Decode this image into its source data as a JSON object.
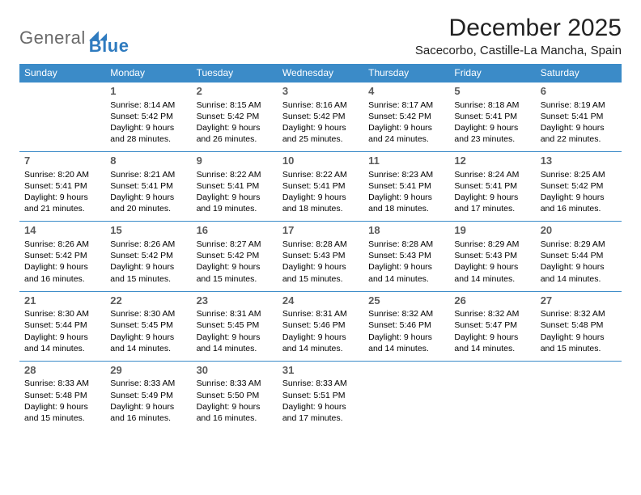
{
  "logo": {
    "general": "General",
    "blue": "Blue"
  },
  "title": "December 2025",
  "location": "Sacecorbo, Castille-La Mancha, Spain",
  "colors": {
    "header_bg": "#3b8bc8",
    "header_fg": "#ffffff",
    "rule": "#3b8bc8"
  },
  "weekdays": [
    "Sunday",
    "Monday",
    "Tuesday",
    "Wednesday",
    "Thursday",
    "Friday",
    "Saturday"
  ],
  "first_weekday_index": 1,
  "days": [
    {
      "n": 1,
      "sr": "8:14 AM",
      "ss": "5:42 PM",
      "dl": "9 hours and 28 minutes."
    },
    {
      "n": 2,
      "sr": "8:15 AM",
      "ss": "5:42 PM",
      "dl": "9 hours and 26 minutes."
    },
    {
      "n": 3,
      "sr": "8:16 AM",
      "ss": "5:42 PM",
      "dl": "9 hours and 25 minutes."
    },
    {
      "n": 4,
      "sr": "8:17 AM",
      "ss": "5:42 PM",
      "dl": "9 hours and 24 minutes."
    },
    {
      "n": 5,
      "sr": "8:18 AM",
      "ss": "5:41 PM",
      "dl": "9 hours and 23 minutes."
    },
    {
      "n": 6,
      "sr": "8:19 AM",
      "ss": "5:41 PM",
      "dl": "9 hours and 22 minutes."
    },
    {
      "n": 7,
      "sr": "8:20 AM",
      "ss": "5:41 PM",
      "dl": "9 hours and 21 minutes."
    },
    {
      "n": 8,
      "sr": "8:21 AM",
      "ss": "5:41 PM",
      "dl": "9 hours and 20 minutes."
    },
    {
      "n": 9,
      "sr": "8:22 AM",
      "ss": "5:41 PM",
      "dl": "9 hours and 19 minutes."
    },
    {
      "n": 10,
      "sr": "8:22 AM",
      "ss": "5:41 PM",
      "dl": "9 hours and 18 minutes."
    },
    {
      "n": 11,
      "sr": "8:23 AM",
      "ss": "5:41 PM",
      "dl": "9 hours and 18 minutes."
    },
    {
      "n": 12,
      "sr": "8:24 AM",
      "ss": "5:41 PM",
      "dl": "9 hours and 17 minutes."
    },
    {
      "n": 13,
      "sr": "8:25 AM",
      "ss": "5:42 PM",
      "dl": "9 hours and 16 minutes."
    },
    {
      "n": 14,
      "sr": "8:26 AM",
      "ss": "5:42 PM",
      "dl": "9 hours and 16 minutes."
    },
    {
      "n": 15,
      "sr": "8:26 AM",
      "ss": "5:42 PM",
      "dl": "9 hours and 15 minutes."
    },
    {
      "n": 16,
      "sr": "8:27 AM",
      "ss": "5:42 PM",
      "dl": "9 hours and 15 minutes."
    },
    {
      "n": 17,
      "sr": "8:28 AM",
      "ss": "5:43 PM",
      "dl": "9 hours and 15 minutes."
    },
    {
      "n": 18,
      "sr": "8:28 AM",
      "ss": "5:43 PM",
      "dl": "9 hours and 14 minutes."
    },
    {
      "n": 19,
      "sr": "8:29 AM",
      "ss": "5:43 PM",
      "dl": "9 hours and 14 minutes."
    },
    {
      "n": 20,
      "sr": "8:29 AM",
      "ss": "5:44 PM",
      "dl": "9 hours and 14 minutes."
    },
    {
      "n": 21,
      "sr": "8:30 AM",
      "ss": "5:44 PM",
      "dl": "9 hours and 14 minutes."
    },
    {
      "n": 22,
      "sr": "8:30 AM",
      "ss": "5:45 PM",
      "dl": "9 hours and 14 minutes."
    },
    {
      "n": 23,
      "sr": "8:31 AM",
      "ss": "5:45 PM",
      "dl": "9 hours and 14 minutes."
    },
    {
      "n": 24,
      "sr": "8:31 AM",
      "ss": "5:46 PM",
      "dl": "9 hours and 14 minutes."
    },
    {
      "n": 25,
      "sr": "8:32 AM",
      "ss": "5:46 PM",
      "dl": "9 hours and 14 minutes."
    },
    {
      "n": 26,
      "sr": "8:32 AM",
      "ss": "5:47 PM",
      "dl": "9 hours and 14 minutes."
    },
    {
      "n": 27,
      "sr": "8:32 AM",
      "ss": "5:48 PM",
      "dl": "9 hours and 15 minutes."
    },
    {
      "n": 28,
      "sr": "8:33 AM",
      "ss": "5:48 PM",
      "dl": "9 hours and 15 minutes."
    },
    {
      "n": 29,
      "sr": "8:33 AM",
      "ss": "5:49 PM",
      "dl": "9 hours and 16 minutes."
    },
    {
      "n": 30,
      "sr": "8:33 AM",
      "ss": "5:50 PM",
      "dl": "9 hours and 16 minutes."
    },
    {
      "n": 31,
      "sr": "8:33 AM",
      "ss": "5:51 PM",
      "dl": "9 hours and 17 minutes."
    }
  ],
  "labels": {
    "sunrise": "Sunrise:",
    "sunset": "Sunset:",
    "daylight": "Daylight:"
  }
}
